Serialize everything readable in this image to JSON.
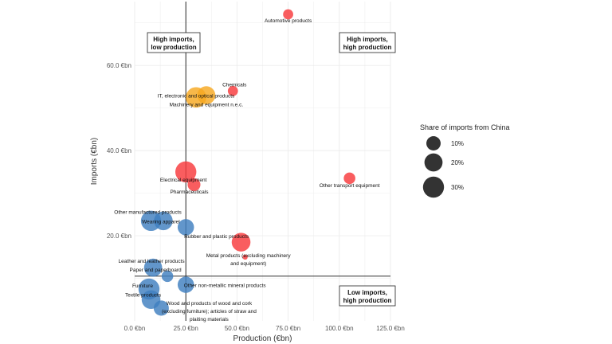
{
  "chart_data": {
    "type": "scatter",
    "xlabel": "Production (€bn)",
    "ylabel": "Imports (€bn)",
    "xlim": [
      0,
      125
    ],
    "ylim": [
      0,
      75
    ],
    "x_ticks": [
      {
        "value": 0,
        "label": "0.0 €bn"
      },
      {
        "value": 25,
        "label": "25.0 €bn"
      },
      {
        "value": 50,
        "label": "50.0 €bn"
      },
      {
        "value": 75,
        "label": "75.0 €bn"
      },
      {
        "value": 100,
        "label": "100.0 €bn"
      },
      {
        "value": 125,
        "label": "125.0 €bn"
      }
    ],
    "y_ticks": [
      {
        "value": 20,
        "label": "20.0 €bn"
      },
      {
        "value": 40,
        "label": "40.0 €bn"
      },
      {
        "value": 60,
        "label": "60.0 €bn"
      }
    ],
    "grid": true,
    "reference_lines": {
      "x": 25,
      "y": 10.5
    },
    "quadrant_labels": [
      {
        "line1": "High imports,",
        "line2": "low production",
        "position": "top-left"
      },
      {
        "line1": "High imports,",
        "line2": "high production",
        "position": "top-right"
      },
      {
        "line1": "Low imports,",
        "line2": "high production",
        "position": "bottom-right"
      }
    ],
    "colors": {
      "red": "#f8393c",
      "orange": "#f6a821",
      "blue": "#3f7fc0",
      "reference": "#111111",
      "grid": "#ececec"
    },
    "legend": {
      "title": "Share of imports from China",
      "position": "right",
      "entries": [
        {
          "label": "10%",
          "share": 10
        },
        {
          "label": "20%",
          "share": 20
        },
        {
          "label": "30%",
          "share": 30
        }
      ]
    },
    "points": [
      {
        "label": "Automotive products",
        "x": 75,
        "y": 72,
        "share": 3,
        "color": "red"
      },
      {
        "label": "Chemicals",
        "x": 48,
        "y": 54,
        "share": 3,
        "color": "red"
      },
      {
        "label": "IT, electronic and optical products",
        "x": 30,
        "y": 52.5,
        "share": 28,
        "color": "orange"
      },
      {
        "label": "Machinery and equipment n.e.c.",
        "x": 35,
        "y": 53,
        "share": 20,
        "color": "orange"
      },
      {
        "label": "Electrical equipment",
        "x": 25,
        "y": 35,
        "share": 30,
        "color": "red"
      },
      {
        "label": "Pharmaceuticals",
        "x": 29,
        "y": 32,
        "share": 7,
        "color": "red"
      },
      {
        "label": "Other transport equipment",
        "x": 105,
        "y": 33.5,
        "share": 5,
        "color": "red"
      },
      {
        "label": "Other manufactured products",
        "x": 8,
        "y": 23.5,
        "share": 27,
        "color": "blue"
      },
      {
        "label": "Wearing apparel",
        "x": 14,
        "y": 23.5,
        "share": 22,
        "color": "blue"
      },
      {
        "label": "",
        "x": 25,
        "y": 22,
        "share": 15,
        "color": "blue"
      },
      {
        "label": "Rubber and plastic products",
        "x": 52,
        "y": 18.5,
        "share": 22,
        "color": "red"
      },
      {
        "label": "Metal products (excluding machinery and equipment)",
        "x": 54,
        "y": 15,
        "share": 0,
        "color": "red"
      },
      {
        "label": "Leather and leather products",
        "x": 9,
        "y": 12.5,
        "share": 20,
        "color": "blue"
      },
      {
        "label": "Paper and paperboard",
        "x": 16,
        "y": 10.5,
        "share": 5,
        "color": "blue"
      },
      {
        "label": "Other non-metallic mineral products",
        "x": 25,
        "y": 8.5,
        "share": 15,
        "color": "blue"
      },
      {
        "label": "Furniture",
        "x": 7,
        "y": 7.5,
        "share": 30,
        "color": "blue"
      },
      {
        "label": "Textile products",
        "x": 8,
        "y": 5,
        "share": 22,
        "color": "blue"
      },
      {
        "label": "Wood and products of wood and cork (excluding furniture); articles of straw and plaiting materials",
        "x": 13,
        "y": 3,
        "share": 12,
        "color": "blue"
      }
    ]
  }
}
